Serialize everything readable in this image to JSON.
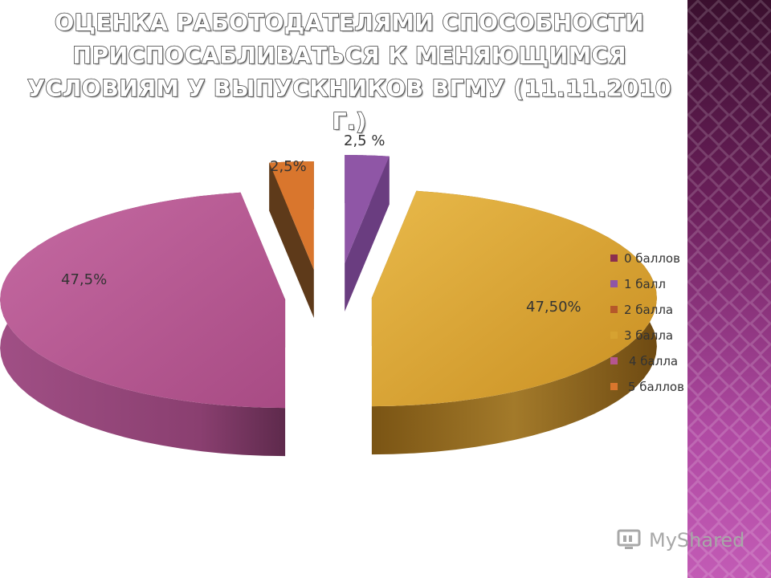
{
  "title": "ОЦЕНКА РАБОТОДАТЕЛЯМИ СПОСОБНОСТИ ПРИСПОСАБЛИВАТЬСЯ К МЕНЯЮЩИМСЯ УСЛОВИЯМ У ВЫПУСКНИКОВ ВГМУ (11.11.2010 Г.)",
  "watermark": "MyShared",
  "chart_data": {
    "type": "pie",
    "title": "",
    "categories": [
      "0 баллов",
      "1 балл",
      "2 балла",
      "3 балла",
      "4 балла",
      "5 баллов"
    ],
    "values": [
      0,
      2.5,
      0,
      47.5,
      47.5,
      2.5
    ],
    "data_labels": [
      "",
      "2,5 %",
      "",
      "47,50%",
      "47,5%",
      "2,5%"
    ],
    "colors": [
      "#8b2f4f",
      "#8f56a6",
      "#b5582a",
      "#d6a231",
      "#b65590",
      "#d9762d"
    ],
    "legend_position": "right",
    "exploded": true,
    "three_d": true
  }
}
